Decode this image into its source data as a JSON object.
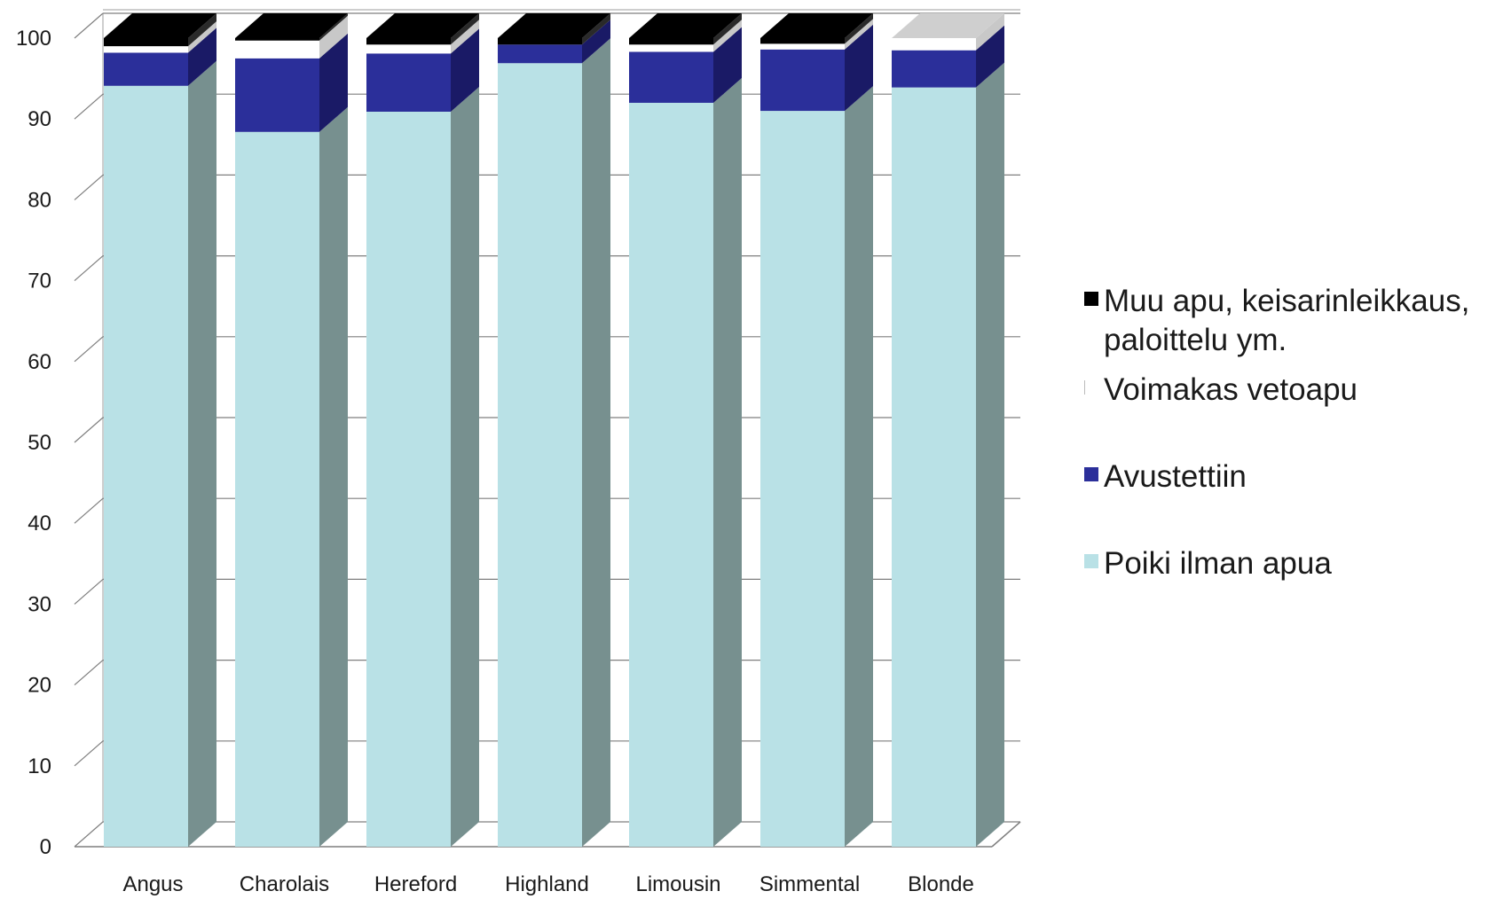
{
  "chart_data": {
    "type": "bar",
    "stacked": true,
    "three_d": true,
    "title": "",
    "xlabel": "",
    "ylabel": "",
    "ylim": [
      0,
      100
    ],
    "yticks": [
      "0",
      "10",
      "20",
      "30",
      "40",
      "50",
      "60",
      "70",
      "80",
      "90",
      "100"
    ],
    "grid": true,
    "legend_position": "right",
    "categories": [
      "Angus",
      "Charolais",
      "Hereford",
      "Highland",
      "Limousin",
      "Simmental",
      "Blonde"
    ],
    "series": [
      {
        "name": "Poiki ilman apua",
        "color": "#b9e1e6",
        "values": [
          94.1,
          88.4,
          90.9,
          96.9,
          92.0,
          91.0,
          93.9
        ]
      },
      {
        "name": "Avustettiin",
        "color": "#2b2f9a",
        "values": [
          4.1,
          9.1,
          7.2,
          2.3,
          6.3,
          7.6,
          4.6
        ]
      },
      {
        "name": "Voimakas vetoapu",
        "color": "#ffffff",
        "values": [
          0.8,
          2.2,
          1.1,
          0.0,
          0.9,
          0.7,
          1.5
        ]
      },
      {
        "name": "Muu apu, keisarinleikkaus,\npaloittelu ym.",
        "color": "#000000",
        "values": [
          1.0,
          0.3,
          0.8,
          0.8,
          0.8,
          0.7,
          0.0
        ]
      }
    ]
  },
  "colors": {
    "background": "#ffffff",
    "gridline": "#7f7f7f",
    "side_faces": [
      "#77908f",
      "#1a1a66",
      "#c8c8c8",
      "#2a2a2a"
    ],
    "blonde_top": "#cfcfcf"
  }
}
